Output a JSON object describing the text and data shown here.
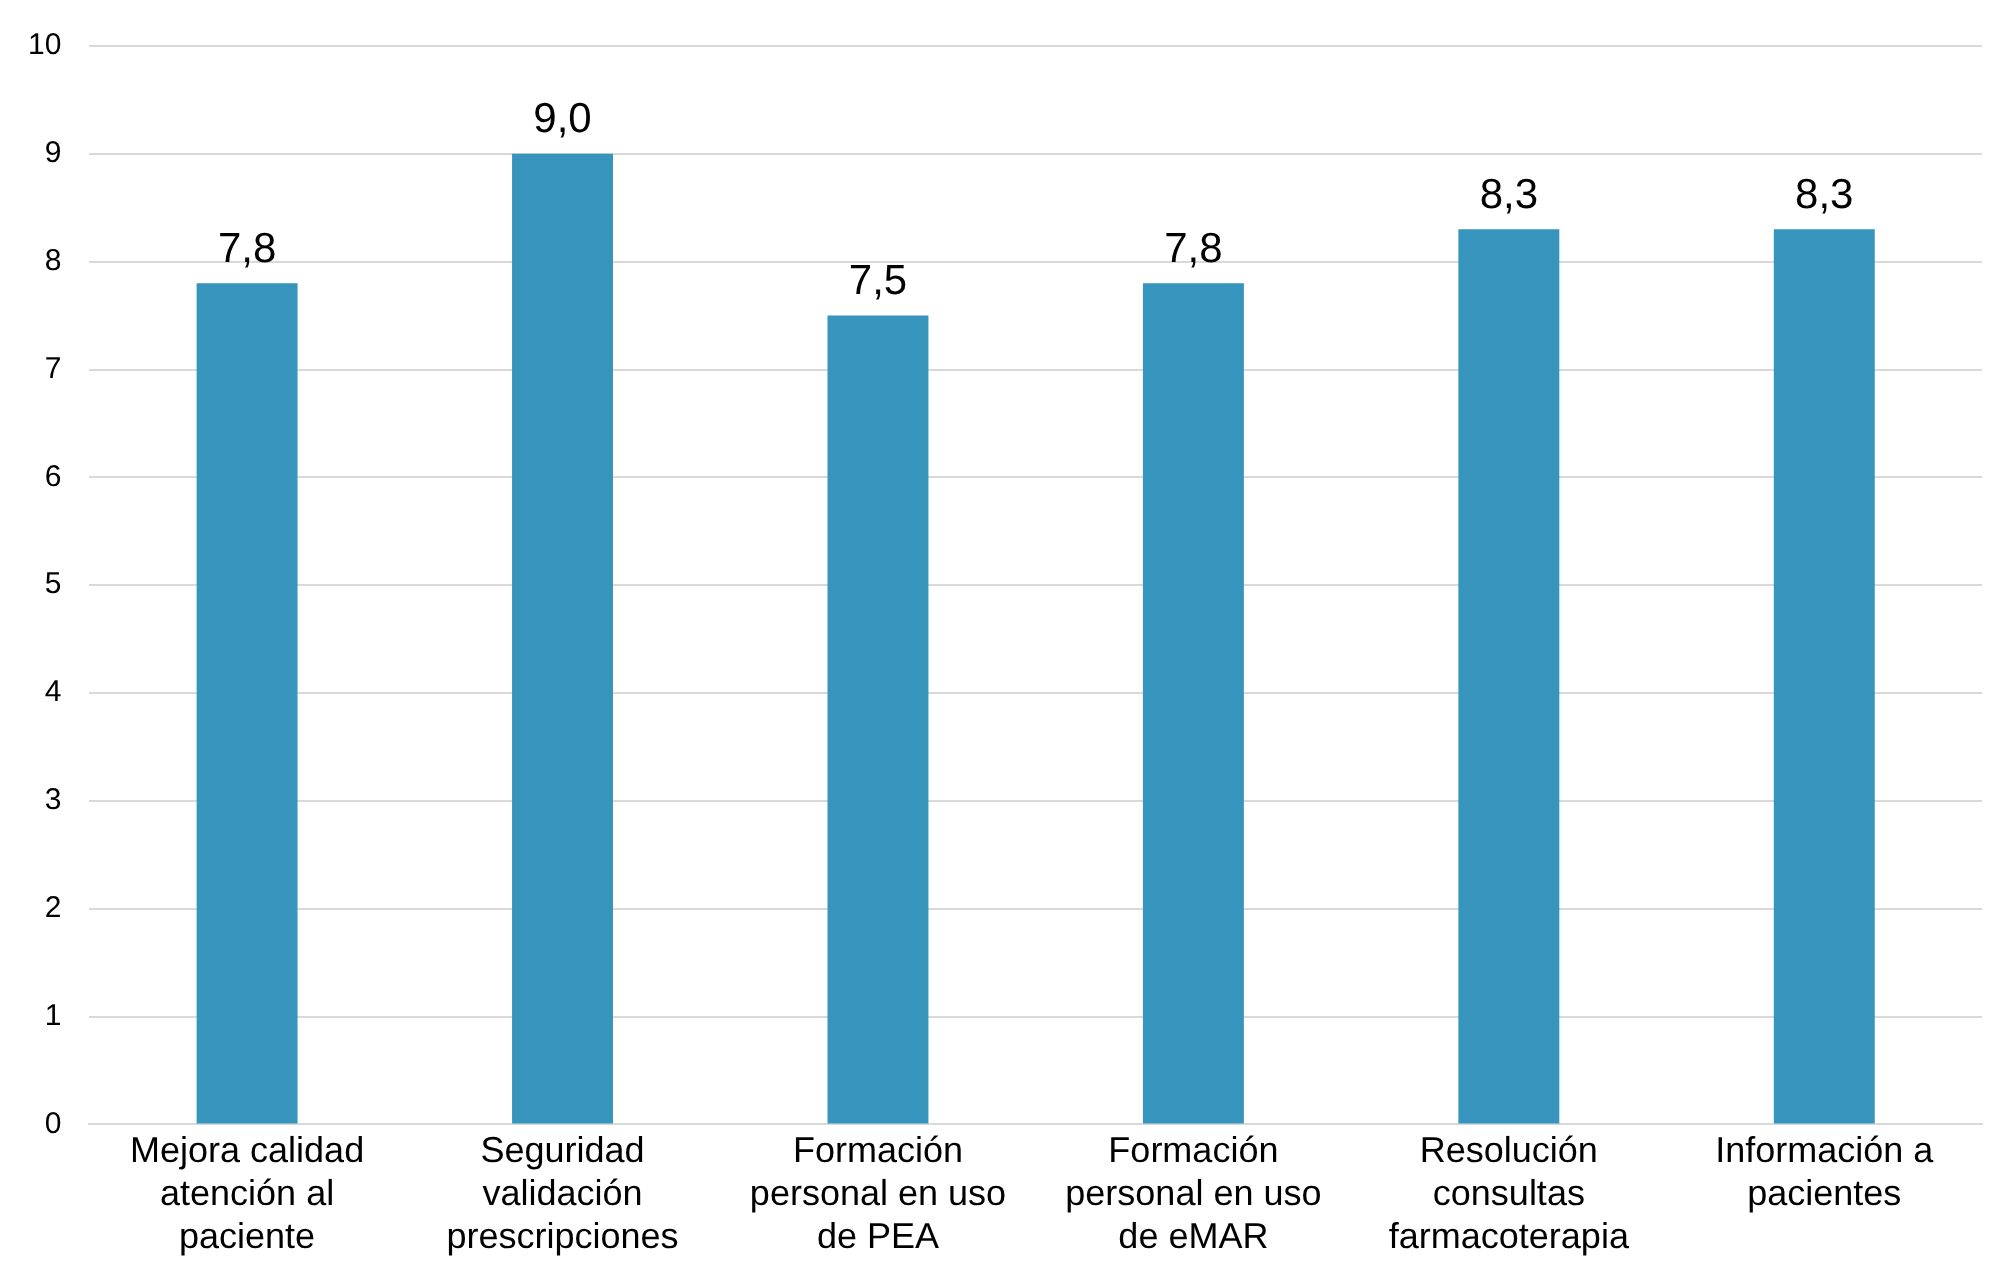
{
  "chart_data": {
    "type": "bar",
    "categories": [
      "Mejora calidad atención al paciente",
      "Seguridad validación prescripciones",
      "Formación personal en uso de PEA",
      "Formación personal en uso de eMAR",
      "Resolución consultas farmacoterapia",
      "Información a pacientes"
    ],
    "values": [
      7.8,
      9.0,
      7.5,
      7.8,
      8.3,
      8.3
    ],
    "value_labels": [
      "7,8",
      "9,0",
      "7,5",
      "7,8",
      "8,3",
      "8,3"
    ],
    "color": "#3795bd",
    "ylim": [
      0,
      10
    ],
    "yticks": [
      0,
      1,
      2,
      3,
      4,
      5,
      6,
      7,
      8,
      9,
      10
    ],
    "grid": "y",
    "legend": false
  }
}
